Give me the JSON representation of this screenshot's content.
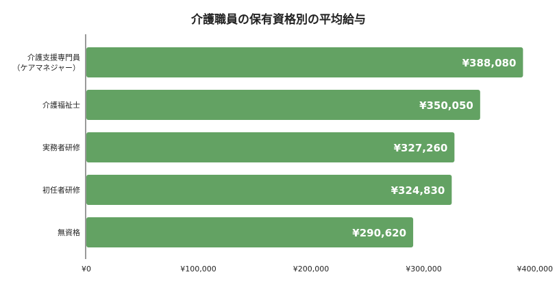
{
  "chart_data": {
    "type": "bar",
    "orientation": "horizontal",
    "title": "介護職員の保有資格別の平均給与",
    "categories": [
      [
        "介護支援専門員",
        "（ケアマネジャー）"
      ],
      [
        "介護福祉士"
      ],
      [
        "実務者研修"
      ],
      [
        "初任者研修"
      ],
      [
        "無資格"
      ]
    ],
    "values": [
      388080,
      350050,
      327260,
      324830,
      290620
    ],
    "value_labels": [
      "¥388,080",
      "¥350,050",
      "¥327,260",
      "¥324,830",
      "¥290,620"
    ],
    "xlim": [
      0,
      400000
    ],
    "x_ticks": [
      0,
      100000,
      200000,
      300000,
      400000
    ],
    "x_tick_labels": [
      "¥0",
      "¥100,000",
      "¥200,000",
      "¥300,000",
      "¥400,000"
    ],
    "bar_color": "#63a263",
    "grid": false,
    "legend": "none"
  }
}
